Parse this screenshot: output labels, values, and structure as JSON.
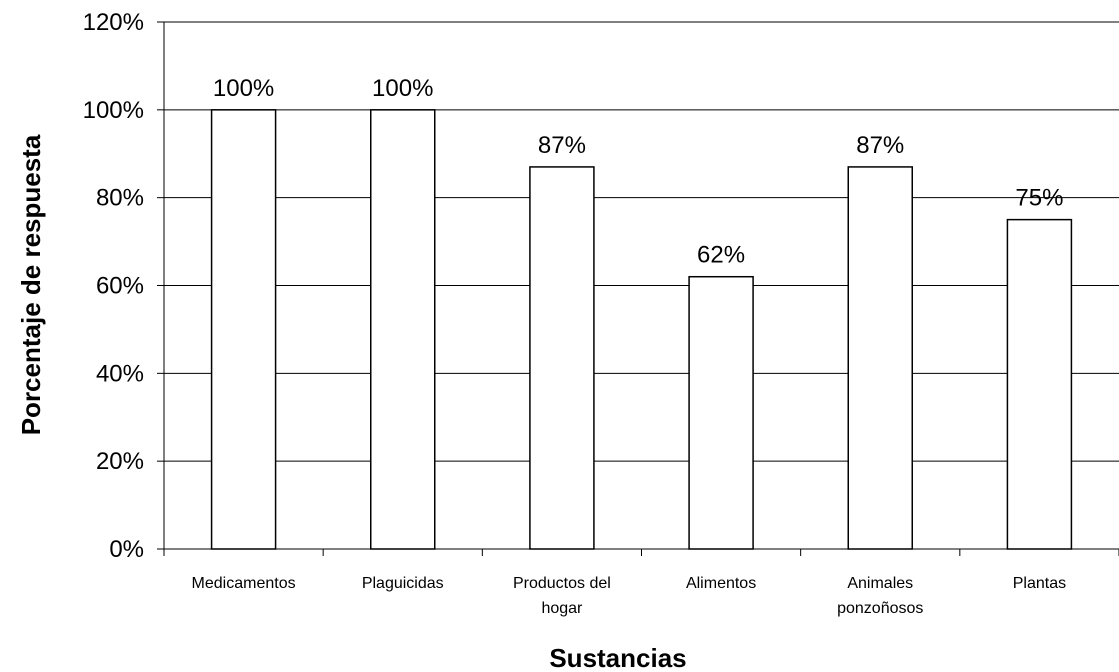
{
  "chart_data": {
    "type": "bar",
    "categories": [
      "Medicamentos",
      "Plaguicidas",
      "Productos del hogar",
      "Alimentos",
      "Animales ponzoñosos",
      "Plantas"
    ],
    "category_lines": [
      [
        "Medicamentos"
      ],
      [
        "Plaguicidas"
      ],
      [
        "Productos del",
        "hogar"
      ],
      [
        "Alimentos"
      ],
      [
        "Animales",
        "ponzoñosos"
      ],
      [
        "Plantas"
      ]
    ],
    "values": [
      100,
      100,
      87,
      62,
      87,
      75
    ],
    "data_labels": [
      "100%",
      "100%",
      "87%",
      "62%",
      "87%",
      "75%"
    ],
    "xlabel": "Sustancias",
    "ylabel": "Porcentaje de respuesta",
    "ylim": [
      0,
      120
    ],
    "yticks": [
      0,
      20,
      40,
      60,
      80,
      100,
      120
    ],
    "ytick_labels": [
      "0%",
      "20%",
      "40%",
      "60%",
      "80%",
      "100%",
      "120%"
    ],
    "grid": true,
    "bar_fill": "#ffffff",
    "bar_stroke": "#000000"
  }
}
